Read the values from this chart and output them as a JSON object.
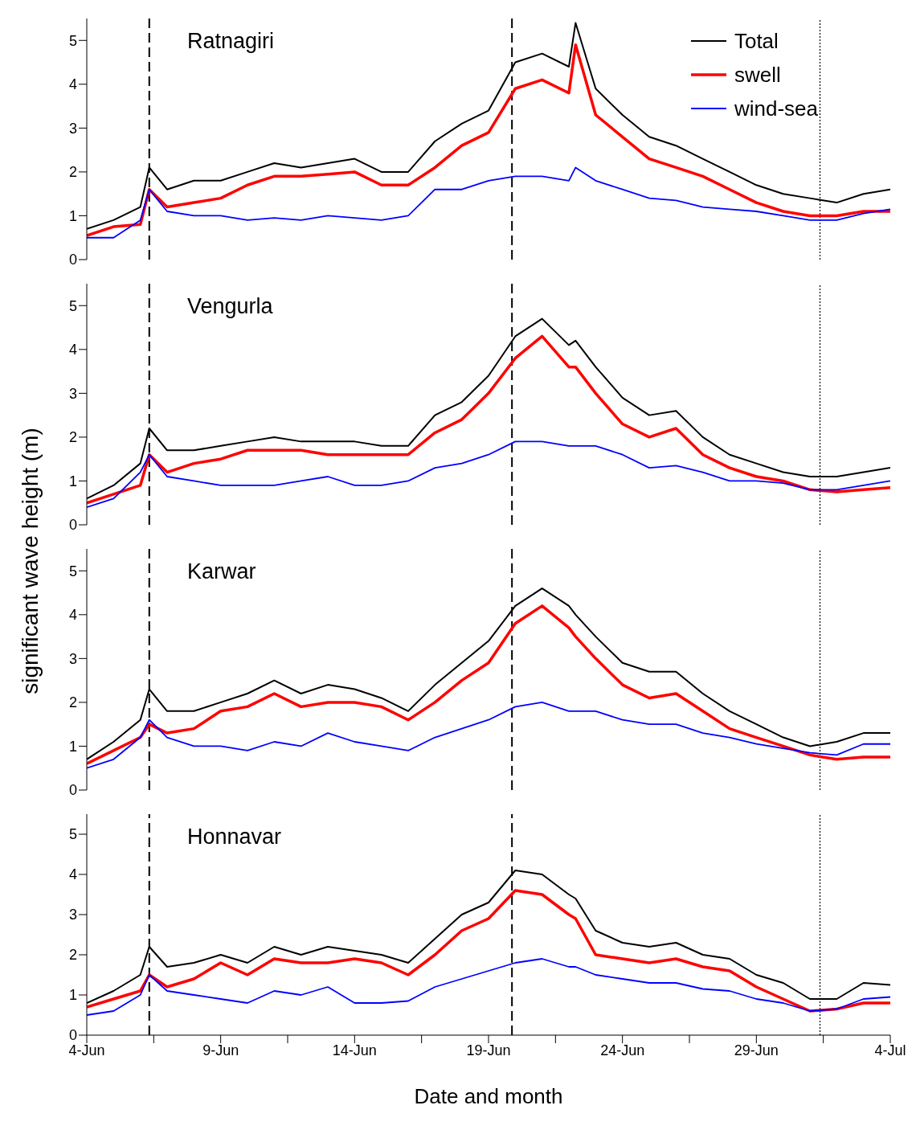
{
  "chart_data": [
    {
      "type": "line",
      "annotations": [
        "Ratnagiri"
      ],
      "legend": "top right",
      "tick_labels": "y",
      "xlim": [
        "--06-04",
        "--07-04"
      ],
      "ylim": [
        0,
        5.5
      ],
      "yticks": [
        0,
        1,
        2,
        3,
        4,
        5
      ],
      "x": [
        "--06-04",
        "--06-05",
        "--06-06",
        "--06-06T08:00",
        "--06-07",
        "--06-08",
        "--06-09",
        "--06-10",
        "--06-11",
        "--06-12",
        "--06-13",
        "--06-14",
        "--06-15",
        "--06-16",
        "--06-17",
        "--06-18",
        "--06-19",
        "--06-20",
        "--06-21",
        "--06-22",
        "--06-22T06:00",
        "--06-23",
        "--06-24",
        "--06-25",
        "--06-26",
        "--06-27",
        "--06-28",
        "--06-29",
        "--06-30",
        "--07-01",
        "--07-02",
        "--07-03",
        "--07-04"
      ],
      "ref_lines": [
        {
          "axis": "x",
          "value": "--06-06T08:00",
          "color": "#000000",
          "line_style": "dashed"
        },
        {
          "axis": "x",
          "value": "--06-19T21:00",
          "color": "#000000",
          "line_style": "dashed"
        },
        {
          "axis": "x",
          "value": "--07-01T09:00",
          "color": "#000000",
          "line_style": "dotted"
        }
      ],
      "series": [
        {
          "name": "Total",
          "color": "#000000",
          "values": [
            0.7,
            0.9,
            1.2,
            2.1,
            1.6,
            1.8,
            1.8,
            2.0,
            2.2,
            2.1,
            2.2,
            2.3,
            2.0,
            2.0,
            2.7,
            3.1,
            3.4,
            4.5,
            4.7,
            4.4,
            5.4,
            3.9,
            3.3,
            2.8,
            2.6,
            2.3,
            2.0,
            1.7,
            1.5,
            1.4,
            1.3,
            1.5,
            1.6
          ]
        },
        {
          "name": "swell",
          "color": "#ff0000",
          "values": [
            0.55,
            0.75,
            0.8,
            1.6,
            1.2,
            1.3,
            1.4,
            1.7,
            1.9,
            1.9,
            1.95,
            2.0,
            1.7,
            1.7,
            2.1,
            2.6,
            2.9,
            3.9,
            4.1,
            3.8,
            4.9,
            3.3,
            2.8,
            2.3,
            2.1,
            1.9,
            1.6,
            1.3,
            1.1,
            1.0,
            1.0,
            1.1,
            1.1
          ]
        },
        {
          "name": "wind-sea",
          "color": "#0000ff",
          "values": [
            0.5,
            0.5,
            0.9,
            1.6,
            1.1,
            1.0,
            1.0,
            0.9,
            0.95,
            0.9,
            1.0,
            0.95,
            0.9,
            1.0,
            1.6,
            1.6,
            1.8,
            1.9,
            1.9,
            1.8,
            2.1,
            1.8,
            1.6,
            1.4,
            1.35,
            1.2,
            1.15,
            1.1,
            1.0,
            0.9,
            0.9,
            1.05,
            1.15
          ]
        }
      ]
    },
    {
      "type": "line",
      "annotations": [
        "Vengurla"
      ],
      "ylabel": "significant wave height (m)",
      "tick_labels": "y",
      "xlim": [
        "--06-04",
        "--07-04"
      ],
      "ylim": [
        0,
        5.5
      ],
      "yticks": [
        0,
        1,
        2,
        3,
        4,
        5
      ],
      "x": [
        "--06-04",
        "--06-05",
        "--06-06",
        "--06-06T08:00",
        "--06-07",
        "--06-08",
        "--06-09",
        "--06-10",
        "--06-11",
        "--06-12",
        "--06-13",
        "--06-14",
        "--06-15",
        "--06-16",
        "--06-17",
        "--06-18",
        "--06-19",
        "--06-20",
        "--06-21",
        "--06-22",
        "--06-22T06:00",
        "--06-23",
        "--06-24",
        "--06-25",
        "--06-26",
        "--06-27",
        "--06-28",
        "--06-29",
        "--06-30",
        "--07-01",
        "--07-02",
        "--07-03",
        "--07-04"
      ],
      "ref_lines": [
        {
          "axis": "x",
          "value": "--06-06T08:00",
          "color": "#000000",
          "line_style": "dashed"
        },
        {
          "axis": "x",
          "value": "--06-19T21:00",
          "color": "#000000",
          "line_style": "dashed"
        },
        {
          "axis": "x",
          "value": "--07-01T09:00",
          "color": "#000000",
          "line_style": "dotted"
        }
      ],
      "series": [
        {
          "color": "#000000",
          "values": [
            0.6,
            0.9,
            1.4,
            2.2,
            1.7,
            1.7,
            1.8,
            1.9,
            2.0,
            1.9,
            1.9,
            1.9,
            1.8,
            1.8,
            2.5,
            2.8,
            3.4,
            4.3,
            4.7,
            4.1,
            4.2,
            3.6,
            2.9,
            2.5,
            2.6,
            2.0,
            1.6,
            1.4,
            1.2,
            1.1,
            1.1,
            1.2,
            1.3
          ]
        },
        {
          "color": "#ff0000",
          "values": [
            0.5,
            0.7,
            0.9,
            1.6,
            1.2,
            1.4,
            1.5,
            1.7,
            1.7,
            1.7,
            1.6,
            1.6,
            1.6,
            1.6,
            2.1,
            2.4,
            3.0,
            3.8,
            4.3,
            3.6,
            3.6,
            3.0,
            2.3,
            2.0,
            2.2,
            1.6,
            1.3,
            1.1,
            1.0,
            0.8,
            0.75,
            0.8,
            0.85
          ]
        },
        {
          "color": "#0000ff",
          "values": [
            0.4,
            0.6,
            1.2,
            1.6,
            1.1,
            1.0,
            0.9,
            0.9,
            0.9,
            1.0,
            1.1,
            0.9,
            0.9,
            1.0,
            1.3,
            1.4,
            1.6,
            1.9,
            1.9,
            1.8,
            1.8,
            1.8,
            1.6,
            1.3,
            1.35,
            1.2,
            1.0,
            1.0,
            0.95,
            0.8,
            0.8,
            0.9,
            1.0
          ]
        }
      ]
    },
    {
      "type": "line",
      "annotations": [
        "Karwar"
      ],
      "tick_labels": "y",
      "xlim": [
        "--06-04",
        "--07-04"
      ],
      "ylim": [
        0,
        5.5
      ],
      "yticks": [
        0,
        1,
        2,
        3,
        4,
        5
      ],
      "x": [
        "--06-04",
        "--06-05",
        "--06-06",
        "--06-06T08:00",
        "--06-07",
        "--06-08",
        "--06-09",
        "--06-10",
        "--06-11",
        "--06-12",
        "--06-13",
        "--06-14",
        "--06-15",
        "--06-16",
        "--06-17",
        "--06-18",
        "--06-19",
        "--06-20",
        "--06-21",
        "--06-22",
        "--06-22T06:00",
        "--06-23",
        "--06-24",
        "--06-25",
        "--06-26",
        "--06-27",
        "--06-28",
        "--06-29",
        "--06-30",
        "--07-01",
        "--07-02",
        "--07-03",
        "--07-04"
      ],
      "ref_lines": [
        {
          "axis": "x",
          "value": "--06-06T08:00",
          "color": "#000000",
          "line_style": "dashed"
        },
        {
          "axis": "x",
          "value": "--06-19T21:00",
          "color": "#000000",
          "line_style": "dashed"
        },
        {
          "axis": "x",
          "value": "--07-01T09:00",
          "color": "#000000",
          "line_style": "dotted"
        }
      ],
      "series": [
        {
          "color": "#000000",
          "values": [
            0.7,
            1.1,
            1.6,
            2.3,
            1.8,
            1.8,
            2.0,
            2.2,
            2.5,
            2.2,
            2.4,
            2.3,
            2.1,
            1.8,
            2.4,
            2.9,
            3.4,
            4.2,
            4.6,
            4.2,
            4.0,
            3.5,
            2.9,
            2.7,
            2.7,
            2.2,
            1.8,
            1.5,
            1.2,
            1.0,
            1.1,
            1.3,
            1.3
          ]
        },
        {
          "color": "#ff0000",
          "values": [
            0.6,
            0.9,
            1.2,
            1.5,
            1.3,
            1.4,
            1.8,
            1.9,
            2.2,
            1.9,
            2.0,
            2.0,
            1.9,
            1.6,
            2.0,
            2.5,
            2.9,
            3.8,
            4.2,
            3.7,
            3.5,
            3.0,
            2.4,
            2.1,
            2.2,
            1.8,
            1.4,
            1.2,
            1.0,
            0.8,
            0.7,
            0.75,
            0.75
          ]
        },
        {
          "color": "#0000ff",
          "values": [
            0.5,
            0.7,
            1.2,
            1.6,
            1.2,
            1.0,
            1.0,
            0.9,
            1.1,
            1.0,
            1.3,
            1.1,
            1.0,
            0.9,
            1.2,
            1.4,
            1.6,
            1.9,
            2.0,
            1.8,
            1.8,
            1.8,
            1.6,
            1.5,
            1.5,
            1.3,
            1.2,
            1.05,
            0.95,
            0.85,
            0.8,
            1.05,
            1.05
          ]
        }
      ]
    },
    {
      "type": "line",
      "annotations": [
        "Honnavar"
      ],
      "xlabel": "Date and month",
      "xlim": [
        "--06-04",
        "--07-04"
      ],
      "ylim": [
        0,
        5.5
      ],
      "yticks": [
        0,
        1,
        2,
        3,
        4,
        5
      ],
      "xticks": [
        {
          "value": "--06-04",
          "label": "4-Jun"
        },
        {
          "value": "--06-06T12:00",
          "label": null
        },
        {
          "value": "--06-09",
          "label": "9-Jun"
        },
        {
          "value": "--06-11T12:00",
          "label": null
        },
        {
          "value": "--06-14",
          "label": "14-Jun"
        },
        {
          "value": "--06-16T12:00",
          "label": null
        },
        {
          "value": "--06-19",
          "label": "19-Jun"
        },
        {
          "value": "--06-21T12:00",
          "label": null
        },
        {
          "value": "--06-24",
          "label": "24-Jun"
        },
        {
          "value": "--06-26T12:00",
          "label": null
        },
        {
          "value": "--06-29",
          "label": "29-Jun"
        },
        {
          "value": "--07-01T12:00",
          "label": null
        },
        {
          "value": "--07-04",
          "label": "4-Jul"
        }
      ],
      "x": [
        "--06-04",
        "--06-05",
        "--06-06",
        "--06-06T08:00",
        "--06-07",
        "--06-08",
        "--06-09",
        "--06-10",
        "--06-11",
        "--06-12",
        "--06-13",
        "--06-14",
        "--06-15",
        "--06-16",
        "--06-17",
        "--06-18",
        "--06-19",
        "--06-20",
        "--06-21",
        "--06-22",
        "--06-22T06:00",
        "--06-23",
        "--06-24",
        "--06-25",
        "--06-26",
        "--06-27",
        "--06-28",
        "--06-29",
        "--06-30",
        "--07-01",
        "--07-02",
        "--07-03",
        "--07-04"
      ],
      "ref_lines": [
        {
          "axis": "x",
          "value": "--06-06T08:00",
          "color": "#000000",
          "line_style": "dashed"
        },
        {
          "axis": "x",
          "value": "--06-19T21:00",
          "color": "#000000",
          "line_style": "dashed"
        },
        {
          "axis": "x",
          "value": "--07-01T09:00",
          "color": "#000000",
          "line_style": "dotted"
        }
      ],
      "series": [
        {
          "color": "#000000",
          "values": [
            0.8,
            1.1,
            1.5,
            2.2,
            1.7,
            1.8,
            2.0,
            1.8,
            2.2,
            2.0,
            2.2,
            2.1,
            2.0,
            1.8,
            2.4,
            3.0,
            3.3,
            4.1,
            4.0,
            3.5,
            3.4,
            2.6,
            2.3,
            2.2,
            2.3,
            2.0,
            1.9,
            1.5,
            1.3,
            0.9,
            0.9,
            1.3,
            1.25
          ]
        },
        {
          "color": "#ff0000",
          "values": [
            0.7,
            0.9,
            1.1,
            1.5,
            1.2,
            1.4,
            1.8,
            1.5,
            1.9,
            1.8,
            1.8,
            1.9,
            1.8,
            1.5,
            2.0,
            2.6,
            2.9,
            3.6,
            3.5,
            3.0,
            2.9,
            2.0,
            1.9,
            1.8,
            1.9,
            1.7,
            1.6,
            1.2,
            0.9,
            0.6,
            0.65,
            0.8,
            0.8
          ]
        },
        {
          "color": "#0000ff",
          "values": [
            0.5,
            0.6,
            1.0,
            1.5,
            1.1,
            1.0,
            0.9,
            0.8,
            1.1,
            1.0,
            1.2,
            0.8,
            0.8,
            0.85,
            1.2,
            1.4,
            1.6,
            1.8,
            1.9,
            1.7,
            1.7,
            1.5,
            1.4,
            1.3,
            1.3,
            1.15,
            1.1,
            0.9,
            0.8,
            0.6,
            0.65,
            0.9,
            0.95
          ]
        }
      ]
    }
  ]
}
